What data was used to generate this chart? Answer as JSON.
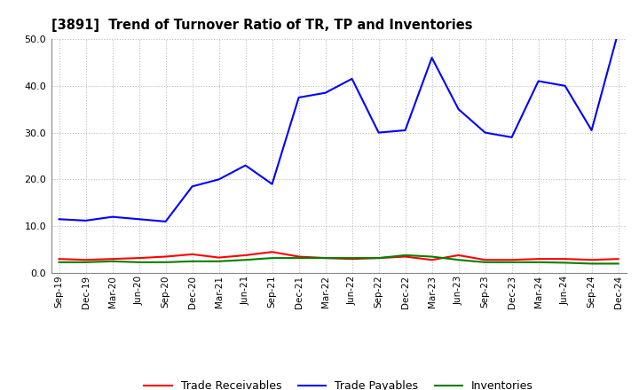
{
  "title": "[3891]  Trend of Turnover Ratio of TR, TP and Inventories",
  "x_labels": [
    "Sep-19",
    "Dec-19",
    "Mar-20",
    "Jun-20",
    "Sep-20",
    "Dec-20",
    "Mar-21",
    "Jun-21",
    "Sep-21",
    "Dec-21",
    "Mar-22",
    "Jun-22",
    "Sep-22",
    "Dec-22",
    "Mar-23",
    "Jun-23",
    "Sep-23",
    "Dec-23",
    "Mar-24",
    "Jun-24",
    "Sep-24",
    "Dec-24"
  ],
  "trade_receivables": [
    3.0,
    2.8,
    3.0,
    3.2,
    3.5,
    4.0,
    3.3,
    3.8,
    4.5,
    3.5,
    3.2,
    3.0,
    3.2,
    3.5,
    2.8,
    3.8,
    2.8,
    2.8,
    3.0,
    3.0,
    2.8,
    3.0
  ],
  "trade_payables": [
    11.5,
    11.2,
    12.0,
    11.5,
    11.0,
    18.5,
    20.0,
    23.0,
    19.0,
    37.5,
    38.5,
    41.5,
    30.0,
    30.5,
    46.0,
    35.0,
    30.0,
    29.0,
    41.0,
    40.0,
    30.5,
    51.5
  ],
  "inventories": [
    2.3,
    2.3,
    2.5,
    2.3,
    2.3,
    2.5,
    2.5,
    2.8,
    3.2,
    3.2,
    3.2,
    3.2,
    3.2,
    3.8,
    3.5,
    2.8,
    2.3,
    2.3,
    2.3,
    2.2,
    2.0,
    2.0
  ],
  "ylim": [
    0.0,
    50.0
  ],
  "yticks": [
    0.0,
    10.0,
    20.0,
    30.0,
    40.0,
    50.0
  ],
  "color_tr": "#ff0000",
  "color_tp": "#0000ff",
  "color_inv": "#008000",
  "legend_labels": [
    "Trade Receivables",
    "Trade Payables",
    "Inventories"
  ],
  "background_color": "#ffffff",
  "grid_color": "#bbbbbb"
}
